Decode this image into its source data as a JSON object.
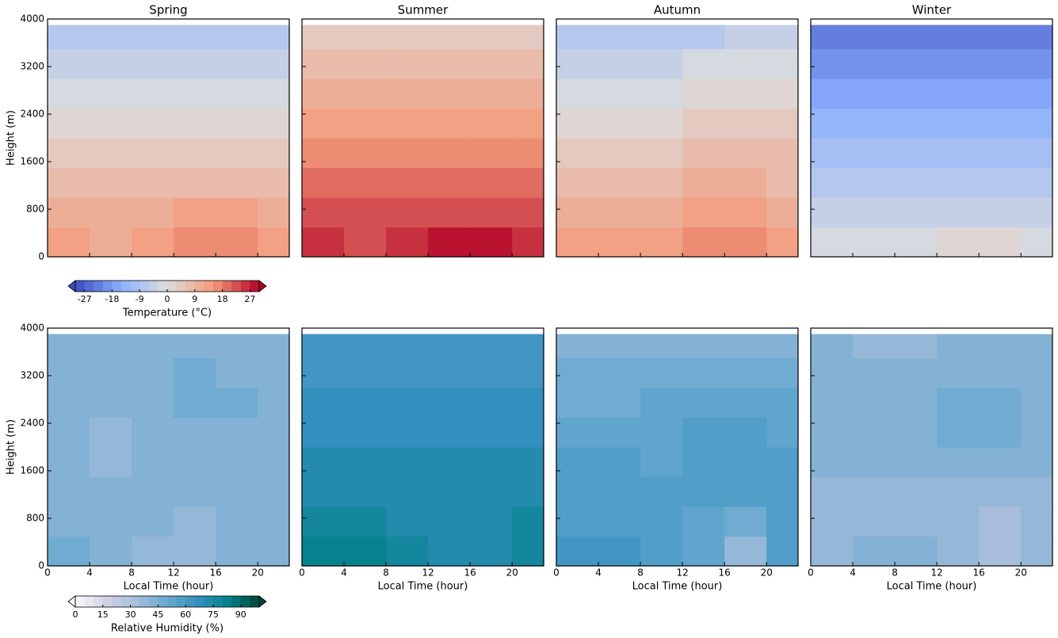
{
  "chart_data": [
    {
      "type": "contour",
      "ylabel": "Height (m)",
      "xbins": [
        0,
        4,
        8,
        12,
        16,
        20,
        23
      ],
      "ybins": [
        0,
        500,
        1000,
        1500,
        2000,
        2500,
        3000,
        3500,
        3900
      ],
      "xlim": [
        0,
        23
      ],
      "ylim": [
        0,
        4000
      ],
      "xticks": [
        0,
        4,
        8,
        12,
        16,
        20
      ],
      "yticks": [
        0,
        800,
        1600,
        2400,
        3200,
        4000
      ],
      "show_xticklabels": false,
      "panels": [
        {
          "title": "Spring",
          "z": [
            [
              13,
              11,
              13,
              15,
              17,
              14
            ],
            [
              10,
              10,
              11,
              12,
              12,
              11
            ],
            [
              7,
              7,
              7,
              8,
              8,
              8
            ],
            [
              4,
              4,
              4,
              4,
              5,
              5
            ],
            [
              1,
              1,
              0,
              1,
              2,
              2
            ],
            [
              -2,
              -2,
              -3,
              -2,
              -1,
              -1
            ],
            [
              -5,
              -5,
              -6,
              -5,
              -4,
              -4
            ],
            [
              -9,
              -9,
              -9,
              -9,
              -8,
              -8
            ]
          ]
        },
        {
          "title": "Summer",
          "z": [
            [
              24,
              23,
              25,
              27,
              28,
              26
            ],
            [
              21,
              21,
              22,
              23,
              23,
              22
            ],
            [
              18,
              18,
              18,
              19,
              19,
              19
            ],
            [
              15,
              15,
              15,
              16,
              16,
              16
            ],
            [
              12,
              12,
              12,
              13,
              13,
              13
            ],
            [
              9,
              9,
              9,
              10,
              10,
              10
            ],
            [
              6,
              6,
              6,
              6,
              7,
              7
            ],
            [
              3,
              3,
              3,
              3,
              3,
              4
            ]
          ]
        },
        {
          "title": "Autumn",
          "z": [
            [
              14,
              12,
              14,
              16,
              17,
              14
            ],
            [
              11,
              11,
              11,
              12,
              12,
              11
            ],
            [
              8,
              8,
              8,
              9,
              9,
              8
            ],
            [
              5,
              5,
              5,
              6,
              6,
              6
            ],
            [
              2,
              2,
              2,
              3,
              3,
              3
            ],
            [
              -1,
              -1,
              -1,
              0,
              0,
              0
            ],
            [
              -4,
              -4,
              -4,
              -3,
              -3,
              -3
            ],
            [
              -7,
              -7,
              -7,
              -7,
              -6,
              -6
            ]
          ]
        },
        {
          "title": "Winter",
          "z": [
            [
              -2,
              -3,
              -2,
              0,
              1,
              -1
            ],
            [
              -5,
              -5,
              -5,
              -4,
              -4,
              -4
            ],
            [
              -8,
              -8,
              -8,
              -7,
              -7,
              -7
            ],
            [
              -11,
              -11,
              -11,
              -11,
              -10,
              -10
            ],
            [
              -14,
              -14,
              -14,
              -14,
              -13,
              -13
            ],
            [
              -17,
              -17,
              -17,
              -17,
              -16,
              -16
            ],
            [
              -20,
              -20,
              -20,
              -20,
              -19,
              -19
            ],
            [
              -22,
              -22,
              -22,
              -22,
              -22,
              -22
            ]
          ]
        }
      ],
      "colorbar": {
        "label": "Temperature (°C)",
        "levels": [
          -30,
          -27,
          -24,
          -21,
          -18,
          -15,
          -12,
          -9,
          -6,
          -3,
          0,
          3,
          6,
          9,
          12,
          15,
          18,
          21,
          24,
          27,
          30
        ],
        "ticks": [
          -27,
          -18,
          -9,
          0,
          9,
          18,
          27
        ],
        "extend": "both",
        "cmap": [
          "#3b4cc0",
          "#8db0fe",
          "#dddddd",
          "#f49a7b",
          "#b40426"
        ]
      }
    },
    {
      "type": "contour",
      "ylabel": "Height (m)",
      "xlabel": "Local Time (hour)",
      "xbins": [
        0,
        4,
        8,
        12,
        16,
        20,
        23
      ],
      "ybins": [
        0,
        500,
        1000,
        1500,
        2000,
        2500,
        3000,
        3500,
        3900
      ],
      "xlim": [
        0,
        23
      ],
      "ylim": [
        0,
        4000
      ],
      "xticks": [
        0,
        4,
        8,
        12,
        16,
        20
      ],
      "yticks": [
        0,
        800,
        1600,
        2400,
        3200,
        4000
      ],
      "show_xticklabels": true,
      "panels": [
        {
          "z": [
            [
              48,
              44,
              38,
              35,
              40,
              42
            ],
            [
              44,
              43,
              40,
              38,
              40,
              42
            ],
            [
              42,
              42,
              42,
              42,
              42,
              42
            ],
            [
              42,
              38,
              42,
              42,
              42,
              42
            ],
            [
              42,
              36,
              42,
              42,
              42,
              42
            ],
            [
              42,
              42,
              42,
              47,
              47,
              42
            ],
            [
              42,
              42,
              42,
              47,
              42,
              42
            ],
            [
              42,
              42,
              42,
              42,
              42,
              42
            ]
          ]
        },
        {
          "z": [
            [
              82,
              84,
              78,
              70,
              72,
              75
            ],
            [
              78,
              78,
              74,
              72,
              72,
              75
            ],
            [
              72,
              72,
              72,
              72,
              72,
              72
            ],
            [
              70,
              70,
              70,
              70,
              70,
              70
            ],
            [
              67,
              67,
              67,
              67,
              67,
              67
            ],
            [
              65,
              65,
              65,
              65,
              65,
              65
            ],
            [
              63,
              63,
              62,
              62,
              63,
              63
            ],
            [
              60,
              60,
              60,
              60,
              60,
              60
            ]
          ]
        },
        {
          "z": [
            [
              60,
              62,
              58,
              50,
              38,
              55
            ],
            [
              58,
              58,
              55,
              50,
              45,
              55
            ],
            [
              55,
              55,
              55,
              55,
              55,
              55
            ],
            [
              55,
              55,
              52,
              57,
              57,
              55
            ],
            [
              52,
              52,
              52,
              55,
              55,
              52
            ],
            [
              48,
              48,
              50,
              52,
              52,
              50
            ],
            [
              45,
              45,
              45,
              47,
              47,
              45
            ],
            [
              42,
              42,
              42,
              42,
              42,
              40
            ]
          ]
        },
        {
          "z": [
            [
              38,
              42,
              40,
              38,
              32,
              38
            ],
            [
              36,
              36,
              36,
              36,
              34,
              36
            ],
            [
              38,
              38,
              38,
              38,
              38,
              38
            ],
            [
              42,
              42,
              42,
              42,
              42,
              42
            ],
            [
              42,
              42,
              42,
              47,
              47,
              42
            ],
            [
              42,
              42,
              42,
              47,
              47,
              42
            ],
            [
              42,
              42,
              42,
              42,
              42,
              42
            ],
            [
              42,
              35,
              35,
              42,
              42,
              42
            ]
          ]
        }
      ],
      "colorbar": {
        "label": "Relative Humidity (%)",
        "levels": [
          0,
          5,
          10,
          15,
          20,
          25,
          30,
          35,
          40,
          45,
          50,
          55,
          60,
          65,
          70,
          75,
          80,
          85,
          90,
          95,
          100
        ],
        "ticks": [
          0,
          15,
          30,
          45,
          60,
          75,
          90
        ],
        "extend": "both",
        "cmap": [
          "#fff7fb",
          "#d0d1e6",
          "#a6bddb",
          "#67a9cf",
          "#3690c0",
          "#02818a",
          "#014636"
        ]
      }
    }
  ]
}
